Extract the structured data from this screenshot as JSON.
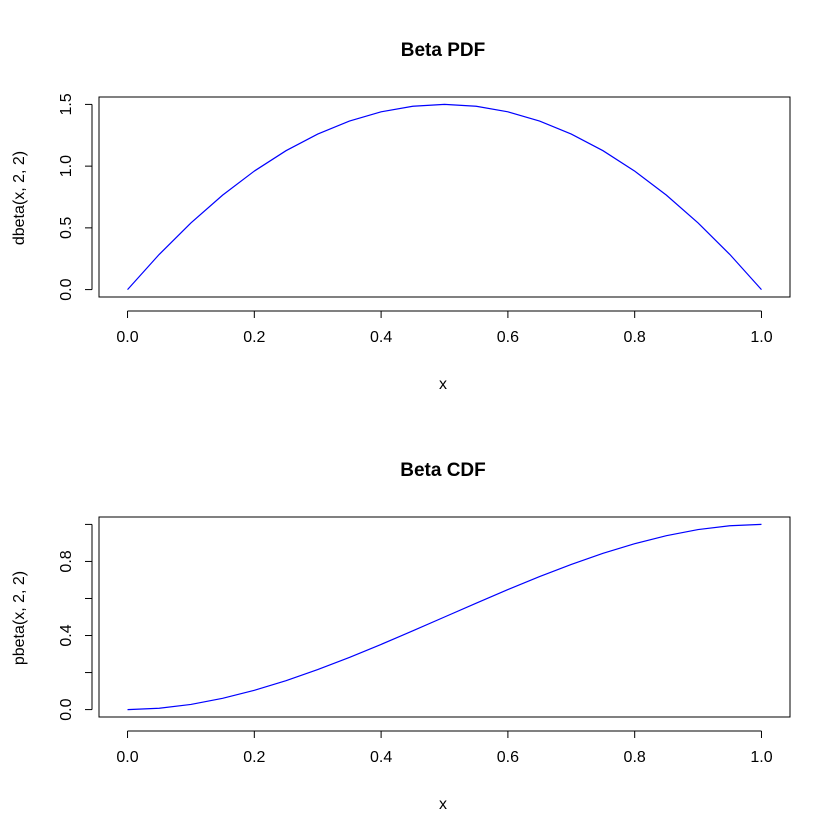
{
  "chart_data": [
    {
      "type": "line",
      "title": "Beta PDF",
      "xlabel": "x",
      "ylabel": "dbeta(x, 2, 2)",
      "xlim": [
        -0.045,
        1.045
      ],
      "ylim": [
        -0.06,
        1.56
      ],
      "xticks": [
        0.0,
        0.2,
        0.4,
        0.6,
        0.8,
        1.0
      ],
      "xtick_labels": [
        "0.0",
        "0.2",
        "0.4",
        "0.6",
        "0.8",
        "1.0"
      ],
      "yticks": [
        0.0,
        0.5,
        1.0,
        1.5
      ],
      "ytick_labels": [
        "0.0",
        "0.5",
        "1.0",
        "1.5"
      ],
      "grid": false,
      "color": "#0000ff",
      "series": [
        {
          "x": [
            0.0,
            0.05,
            0.1,
            0.15,
            0.2,
            0.25,
            0.3,
            0.35,
            0.4,
            0.45,
            0.5,
            0.55,
            0.6,
            0.65,
            0.7,
            0.75,
            0.8,
            0.85,
            0.9,
            0.95,
            1.0
          ],
          "values": [
            0.0,
            0.285,
            0.54,
            0.765,
            0.96,
            1.125,
            1.26,
            1.365,
            1.44,
            1.485,
            1.5,
            1.485,
            1.44,
            1.365,
            1.26,
            1.125,
            0.96,
            0.765,
            0.54,
            0.285,
            0.0
          ]
        }
      ]
    },
    {
      "type": "line",
      "title": "Beta CDF",
      "xlabel": "x",
      "ylabel": "pbeta(x, 2, 2)",
      "xlim": [
        -0.045,
        1.045
      ],
      "ylim": [
        -0.04,
        1.04
      ],
      "xticks": [
        0.0,
        0.2,
        0.4,
        0.6,
        0.8,
        1.0
      ],
      "xtick_labels": [
        "0.0",
        "0.2",
        "0.4",
        "0.6",
        "0.8",
        "1.0"
      ],
      "yticks": [
        0.0,
        0.2,
        0.4,
        0.6,
        0.8,
        1.0
      ],
      "ytick_labels": [
        "0.0",
        "",
        "0.4",
        "",
        "0.8",
        ""
      ],
      "grid": false,
      "color": "#0000ff",
      "series": [
        {
          "x": [
            0.0,
            0.05,
            0.1,
            0.15,
            0.2,
            0.25,
            0.3,
            0.35,
            0.4,
            0.45,
            0.5,
            0.55,
            0.6,
            0.65,
            0.7,
            0.75,
            0.8,
            0.85,
            0.9,
            0.95,
            1.0
          ],
          "values": [
            0.0,
            0.00725,
            0.028,
            0.06075,
            0.104,
            0.15625,
            0.216,
            0.28175,
            0.352,
            0.42525,
            0.5,
            0.57475,
            0.648,
            0.71825,
            0.784,
            0.84375,
            0.896,
            0.93925,
            0.972,
            0.99275,
            1.0
          ]
        }
      ]
    }
  ]
}
